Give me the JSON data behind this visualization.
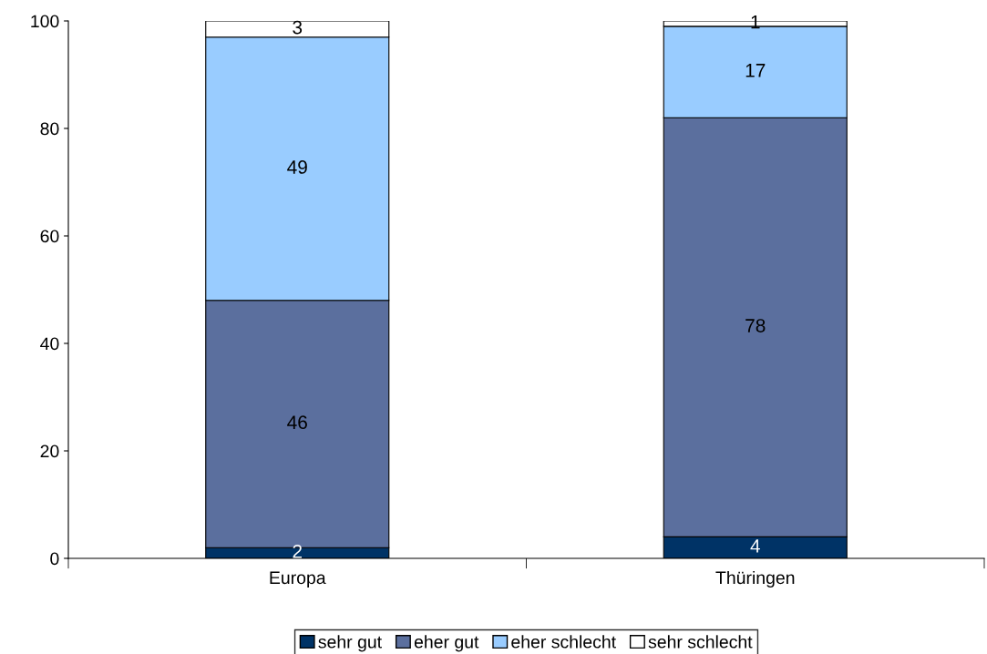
{
  "chart_data": {
    "type": "bar",
    "stacked": true,
    "categories": [
      "Europa",
      "Thüringen"
    ],
    "series": [
      {
        "name": "sehr gut",
        "color": "#003366",
        "values": [
          2,
          4
        ]
      },
      {
        "name": "eher gut",
        "color": "#5b6f9e",
        "values": [
          46,
          78
        ]
      },
      {
        "name": "eher schlecht",
        "color": "#99ccff",
        "values": [
          49,
          17
        ]
      },
      {
        "name": "sehr schlecht",
        "color": "#ffffff",
        "values": [
          3,
          1
        ]
      }
    ],
    "ylim": [
      0,
      100
    ],
    "yticks": [
      0,
      20,
      40,
      60,
      80,
      100
    ],
    "grid": false,
    "legend": "bottom",
    "data_labels": true
  }
}
